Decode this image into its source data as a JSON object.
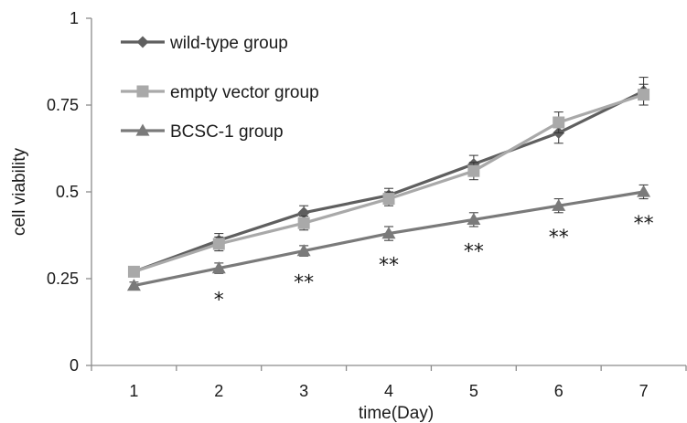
{
  "chart_data": {
    "type": "line",
    "xlabel": "time(Day)",
    "ylabel": "cell viability",
    "x": [
      1,
      2,
      3,
      4,
      5,
      6,
      7
    ],
    "xlim": [
      0.5,
      7.5
    ],
    "ylim": [
      0,
      1
    ],
    "y_ticks": [
      0,
      0.25,
      0.5,
      0.75,
      1
    ],
    "y_tick_labels": [
      "0",
      "0.25",
      "0.5",
      "0.75",
      "1"
    ],
    "x_tick_labels": [
      "1",
      "2",
      "3",
      "4",
      "5",
      "6",
      "7"
    ],
    "grid": false,
    "legend_position": "top-left",
    "series": [
      {
        "name": "wild-type group",
        "marker": "diamond",
        "color": "#5f5f5f",
        "values": [
          0.27,
          0.36,
          0.44,
          0.49,
          0.58,
          0.67,
          0.79
        ],
        "errors": [
          0.01,
          0.02,
          0.02,
          0.02,
          0.025,
          0.03,
          0.04
        ]
      },
      {
        "name": "empty vector group",
        "marker": "square",
        "color": "#a9a9a9",
        "values": [
          0.27,
          0.35,
          0.41,
          0.48,
          0.56,
          0.7,
          0.78
        ],
        "errors": [
          0.01,
          0.02,
          0.02,
          0.02,
          0.025,
          0.03,
          0.03
        ]
      },
      {
        "name": "BCSC-1 group",
        "marker": "triangle",
        "color": "#7a7a7a",
        "values": [
          0.23,
          0.28,
          0.33,
          0.38,
          0.42,
          0.46,
          0.5
        ],
        "errors": [
          0.01,
          0.015,
          0.015,
          0.02,
          0.02,
          0.02,
          0.02
        ]
      }
    ],
    "significance": [
      {
        "x": 2,
        "label": "*"
      },
      {
        "x": 3,
        "label": "**"
      },
      {
        "x": 4,
        "label": "**"
      },
      {
        "x": 5,
        "label": "**"
      },
      {
        "x": 6,
        "label": "**"
      },
      {
        "x": 7,
        "label": "**"
      }
    ]
  }
}
